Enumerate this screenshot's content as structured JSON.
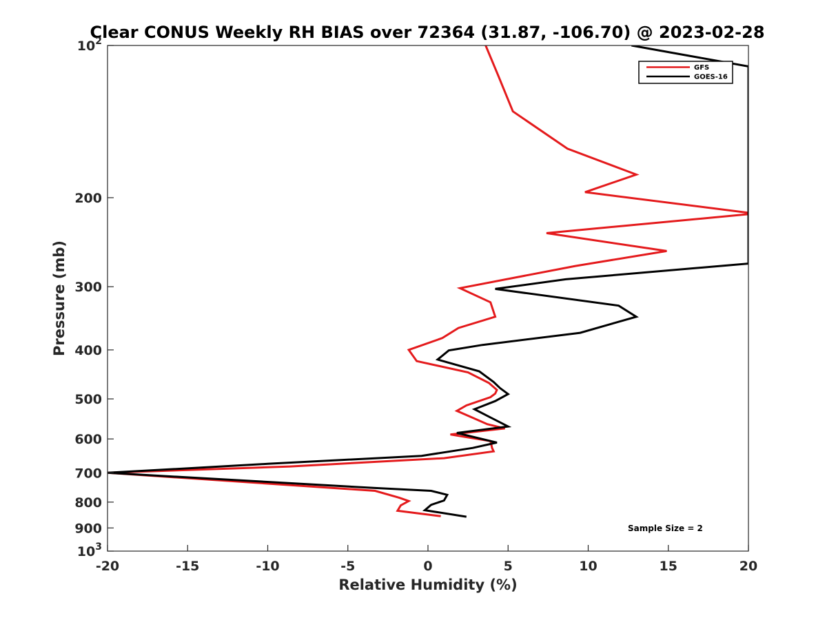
{
  "chart_data": {
    "type": "line",
    "title": "Clear CONUS Weekly RH BIAS over 72364 (31.87, -106.70) @ 2023-02-28",
    "xlabel": "Relative Humidity (%)",
    "ylabel": "Pressure (mb)",
    "xlim": [
      -20,
      20
    ],
    "ylim": [
      100,
      1000
    ],
    "y_scale": "log",
    "y_reversed": true,
    "x_ticks": [
      "-20",
      "-15",
      "-10",
      "-5",
      "0",
      "5",
      "10",
      "15",
      "20"
    ],
    "y_ticks": [
      {
        "value": 100,
        "base": "10",
        "exp": "2"
      },
      {
        "value": 200,
        "label": "200"
      },
      {
        "value": 300,
        "label": "300"
      },
      {
        "value": 400,
        "label": "400"
      },
      {
        "value": 500,
        "label": "500"
      },
      {
        "value": 600,
        "label": "600"
      },
      {
        "value": 700,
        "label": "700"
      },
      {
        "value": 800,
        "label": "800"
      },
      {
        "value": 900,
        "label": "900"
      },
      {
        "value": 1000,
        "base": "10",
        "exp": "3"
      }
    ],
    "legend_position": "top-right",
    "grid": false,
    "annotation": "Sample Size = 2",
    "series": [
      {
        "name": "GFS",
        "color": "#e41a1c",
        "points": [
          [
            3.6,
            100
          ],
          [
            4.4,
            115
          ],
          [
            5.3,
            135
          ],
          [
            8.7,
            160
          ],
          [
            13.0,
            180
          ],
          [
            9.8,
            195
          ],
          [
            20.4,
            215
          ],
          [
            7.4,
            235
          ],
          [
            14.9,
            255
          ],
          [
            9.2,
            273
          ],
          [
            2.0,
            302
          ],
          [
            3.9,
            322
          ],
          [
            4.2,
            344
          ],
          [
            1.9,
            362
          ],
          [
            0.9,
            379
          ],
          [
            -1.2,
            400
          ],
          [
            -0.7,
            421
          ],
          [
            2.5,
            443
          ],
          [
            3.8,
            465
          ],
          [
            4.3,
            480
          ],
          [
            4.2,
            488
          ],
          [
            3.9,
            496
          ],
          [
            2.4,
            515
          ],
          [
            1.8,
            528
          ],
          [
            2.8,
            545
          ],
          [
            3.7,
            561
          ],
          [
            4.8,
            572
          ],
          [
            1.4,
            588
          ],
          [
            3.9,
            606
          ],
          [
            4.0,
            625
          ],
          [
            4.1,
            635
          ],
          [
            1.0,
            655
          ],
          [
            -8.6,
            680
          ],
          [
            -20.0,
            700
          ],
          [
            -3.3,
            760
          ],
          [
            -1.8,
            784
          ],
          [
            -1.2,
            796
          ],
          [
            -1.7,
            812
          ],
          [
            -1.9,
            832
          ],
          [
            0.8,
            853
          ]
        ]
      },
      {
        "name": "GOES-16",
        "color": "#000000",
        "points": [
          [
            12.7,
            100
          ],
          [
            20.0,
            110
          ],
          [
            20.0,
            270
          ],
          [
            8.6,
            290
          ],
          [
            4.2,
            303
          ],
          [
            11.9,
            327
          ],
          [
            13.0,
            344
          ],
          [
            9.5,
            370
          ],
          [
            3.4,
            391
          ],
          [
            1.3,
            401
          ],
          [
            0.6,
            418
          ],
          [
            3.2,
            441
          ],
          [
            4.1,
            463
          ],
          [
            4.5,
            476
          ],
          [
            5.0,
            489
          ],
          [
            4.2,
            505
          ],
          [
            2.9,
            524
          ],
          [
            3.8,
            542
          ],
          [
            5.0,
            567
          ],
          [
            1.8,
            584
          ],
          [
            4.3,
            610
          ],
          [
            2.8,
            625
          ],
          [
            -0.4,
            648
          ],
          [
            -10.0,
            672
          ],
          [
            -20.0,
            700
          ],
          [
            -3.4,
            750
          ],
          [
            0.2,
            760
          ],
          [
            1.2,
            774
          ],
          [
            1.0,
            794
          ],
          [
            0.2,
            810
          ],
          [
            -0.2,
            830
          ],
          [
            2.4,
            855
          ]
        ]
      }
    ]
  }
}
